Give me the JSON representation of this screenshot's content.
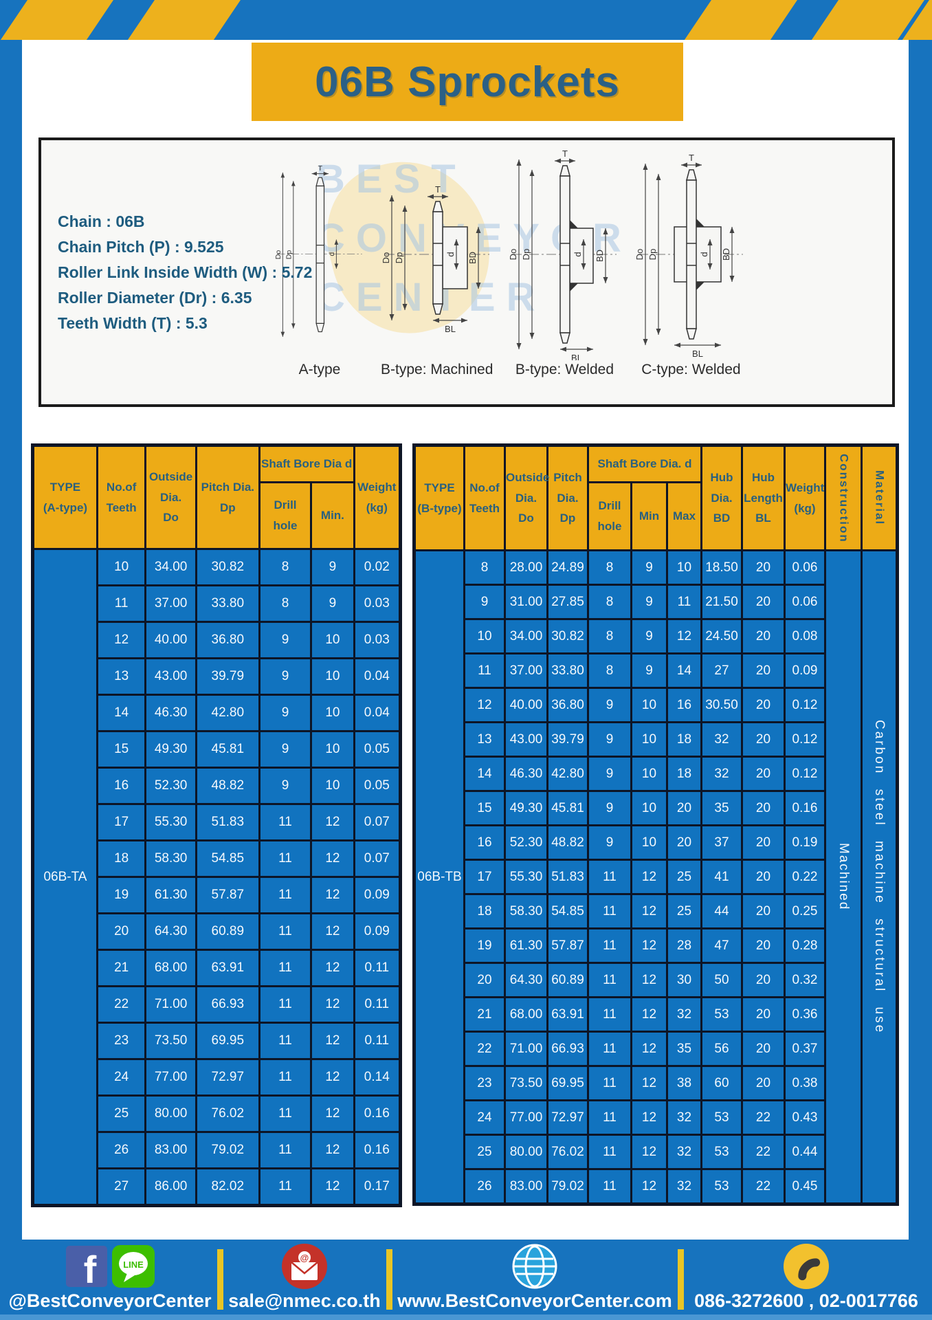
{
  "title": "06B Sprockets",
  "specs": {
    "lines": [
      "Chain  :  06B",
      "Chain Pitch (P)  :  9.525",
      "Roller Link Inside Width (W)  :  5.72",
      "Roller Diameter (Dr)  : 6.35",
      "Teeth Width (T)  :  5.3"
    ]
  },
  "diagrams": {
    "watermark_lines": [
      "BEST",
      "CONVEYOR",
      "CENTER"
    ],
    "dim_labels": {
      "t": "T",
      "do": "Do",
      "dp": "Dp",
      "d": "d",
      "bd": "BD",
      "bl": "BL"
    },
    "items": [
      {
        "label": "A-type"
      },
      {
        "label": "B-type: Machined"
      },
      {
        "label": "B-type: Welded"
      },
      {
        "label": "C-type: Welded"
      }
    ]
  },
  "table_a": {
    "headers": {
      "type": "TYPE\n(A-type)",
      "teeth": "No.of\nTeeth",
      "outside": "Outside\nDia.\nDo",
      "pitch": "Pitch Dia.\nDp",
      "bore_group": "Shaft Bore Dia d",
      "drill": "Drill hole",
      "min": "Min.",
      "weight": "Weight\n(kg)"
    },
    "type_label": "06B-TA",
    "rows": [
      [
        "10",
        "34.00",
        "30.82",
        "8",
        "9",
        "0.02"
      ],
      [
        "11",
        "37.00",
        "33.80",
        "8",
        "9",
        "0.03"
      ],
      [
        "12",
        "40.00",
        "36.80",
        "9",
        "10",
        "0.03"
      ],
      [
        "13",
        "43.00",
        "39.79",
        "9",
        "10",
        "0.04"
      ],
      [
        "14",
        "46.30",
        "42.80",
        "9",
        "10",
        "0.04"
      ],
      [
        "15",
        "49.30",
        "45.81",
        "9",
        "10",
        "0.05"
      ],
      [
        "16",
        "52.30",
        "48.82",
        "9",
        "10",
        "0.05"
      ],
      [
        "17",
        "55.30",
        "51.83",
        "11",
        "12",
        "0.07"
      ],
      [
        "18",
        "58.30",
        "54.85",
        "11",
        "12",
        "0.07"
      ],
      [
        "19",
        "61.30",
        "57.87",
        "11",
        "12",
        "0.09"
      ],
      [
        "20",
        "64.30",
        "60.89",
        "11",
        "12",
        "0.09"
      ],
      [
        "21",
        "68.00",
        "63.91",
        "11",
        "12",
        "0.11"
      ],
      [
        "22",
        "71.00",
        "66.93",
        "11",
        "12",
        "0.11"
      ],
      [
        "23",
        "73.50",
        "69.95",
        "11",
        "12",
        "0.11"
      ],
      [
        "24",
        "77.00",
        "72.97",
        "11",
        "12",
        "0.14"
      ],
      [
        "25",
        "80.00",
        "76.02",
        "11",
        "12",
        "0.16"
      ],
      [
        "26",
        "83.00",
        "79.02",
        "11",
        "12",
        "0.16"
      ],
      [
        "27",
        "86.00",
        "82.02",
        "11",
        "12",
        "0.17"
      ]
    ]
  },
  "table_b": {
    "headers": {
      "type": "TYPE\n(B-type)",
      "teeth": "No.of\nTeeth",
      "outside": "Outside\nDia.\nDo",
      "pitch": "Pitch\nDia.\nDp",
      "bore_group": "Shaft Bore Dia. d",
      "drill": "Drill hole",
      "min": "Min",
      "max": "Max",
      "hub_dia": "Hub\nDia.\nBD",
      "hub_len": "Hub\nLength\nBL",
      "weight": "Weight\n(kg)",
      "construction": "Construction",
      "material": "Material"
    },
    "type_label": "06B-TB",
    "construction_value": "Machined",
    "material_value": "Carbon steel machine structural use",
    "rows": [
      [
        "8",
        "28.00",
        "24.89",
        "8",
        "9",
        "10",
        "18.50",
        "20",
        "0.06"
      ],
      [
        "9",
        "31.00",
        "27.85",
        "8",
        "9",
        "11",
        "21.50",
        "20",
        "0.06"
      ],
      [
        "10",
        "34.00",
        "30.82",
        "8",
        "9",
        "12",
        "24.50",
        "20",
        "0.08"
      ],
      [
        "11",
        "37.00",
        "33.80",
        "8",
        "9",
        "14",
        "27",
        "20",
        "0.09"
      ],
      [
        "12",
        "40.00",
        "36.80",
        "9",
        "10",
        "16",
        "30.50",
        "20",
        "0.12"
      ],
      [
        "13",
        "43.00",
        "39.79",
        "9",
        "10",
        "18",
        "32",
        "20",
        "0.12"
      ],
      [
        "14",
        "46.30",
        "42.80",
        "9",
        "10",
        "18",
        "32",
        "20",
        "0.12"
      ],
      [
        "15",
        "49.30",
        "45.81",
        "9",
        "10",
        "20",
        "35",
        "20",
        "0.16"
      ],
      [
        "16",
        "52.30",
        "48.82",
        "9",
        "10",
        "20",
        "37",
        "20",
        "0.19"
      ],
      [
        "17",
        "55.30",
        "51.83",
        "11",
        "12",
        "25",
        "41",
        "20",
        "0.22"
      ],
      [
        "18",
        "58.30",
        "54.85",
        "11",
        "12",
        "25",
        "44",
        "20",
        "0.25"
      ],
      [
        "19",
        "61.30",
        "57.87",
        "11",
        "12",
        "28",
        "47",
        "20",
        "0.28"
      ],
      [
        "20",
        "64.30",
        "60.89",
        "11",
        "12",
        "30",
        "50",
        "20",
        "0.32"
      ],
      [
        "21",
        "68.00",
        "63.91",
        "11",
        "12",
        "32",
        "53",
        "20",
        "0.36"
      ],
      [
        "22",
        "71.00",
        "66.93",
        "11",
        "12",
        "35",
        "56",
        "20",
        "0.37"
      ],
      [
        "23",
        "73.50",
        "69.95",
        "11",
        "12",
        "38",
        "60",
        "20",
        "0.38"
      ],
      [
        "24",
        "77.00",
        "72.97",
        "11",
        "12",
        "32",
        "53",
        "22",
        "0.43"
      ],
      [
        "25",
        "80.00",
        "76.02",
        "11",
        "12",
        "32",
        "53",
        "22",
        "0.44"
      ],
      [
        "26",
        "83.00",
        "79.02",
        "11",
        "12",
        "32",
        "53",
        "22",
        "0.45"
      ]
    ]
  },
  "footer": {
    "social": "@BestConveyorCenter",
    "line_label": "LINE",
    "email": "sale@nmec.co.th",
    "website": "www.BestConveyorCenter.com",
    "phones": "086-3272600 , 02-0017766"
  },
  "colors": {
    "frame_blue": "#1773be",
    "accent_yellow": "#edab16",
    "cell_blue": "#1173bf",
    "grid_dark": "#0d1526",
    "heading_teal": "#29607f"
  }
}
